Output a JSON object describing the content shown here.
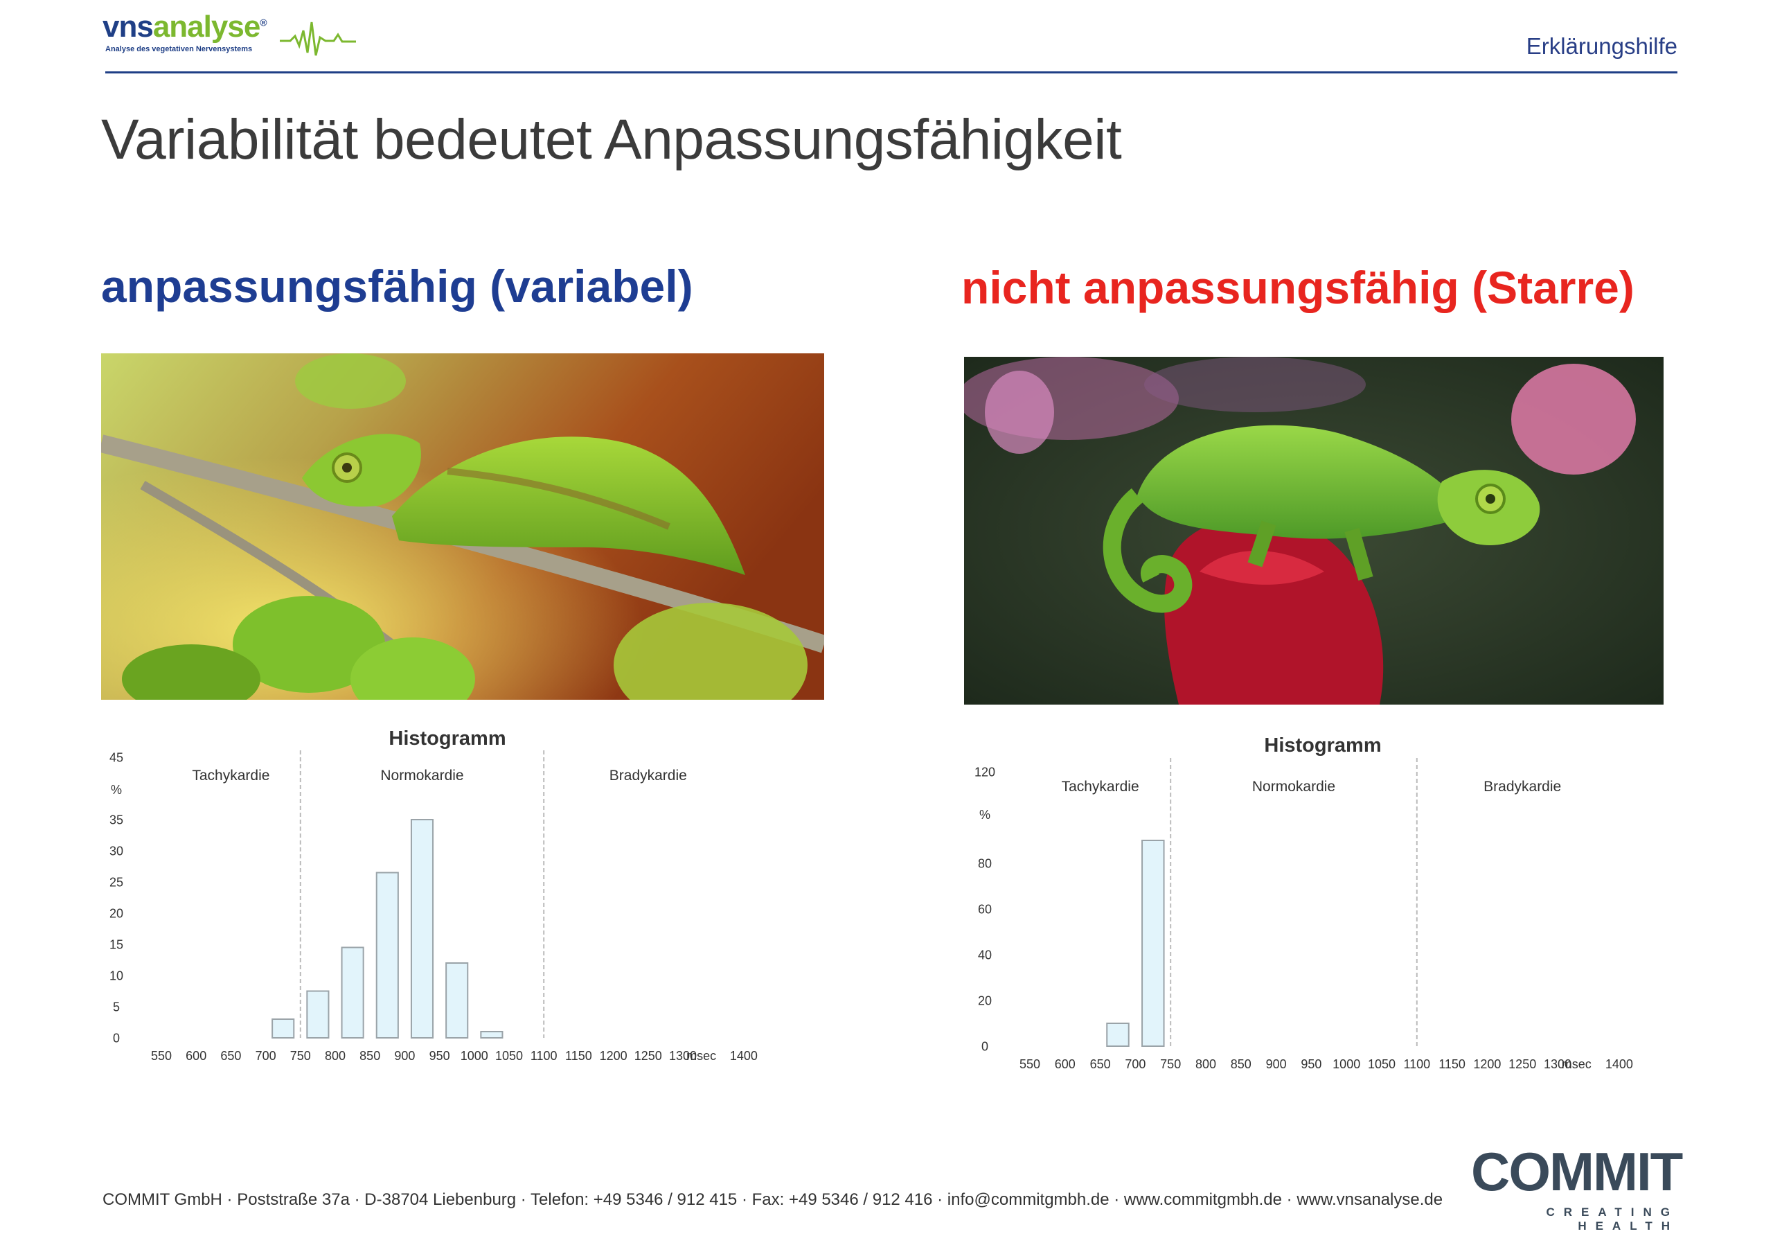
{
  "header": {
    "logo": {
      "word_dark": "vns",
      "word_light": "analyse",
      "reg": "®",
      "subtitle": "Analyse des vegetativen Nervensystems"
    },
    "right_label": "Erklärungshilfe"
  },
  "title": "Variabilität bedeutet Anpassungsfähigkeit",
  "left": {
    "heading": "anpassungsfähig (variabel)"
  },
  "right": {
    "heading": "nicht anpassungsfähig (Starre)"
  },
  "colors": {
    "blue": "#1e3d92",
    "red": "#e8251f",
    "bar_fill": "#e2f4fb",
    "bar_stroke": "#9aa3a8"
  },
  "chart_data": [
    {
      "type": "bar",
      "title": "Histogramm",
      "xlabel": "msec",
      "ylabel": "%",
      "ylim": [
        0,
        45
      ],
      "yticks": [
        0,
        5,
        10,
        15,
        20,
        25,
        30,
        35,
        45
      ],
      "xticks": [
        550,
        600,
        650,
        700,
        750,
        800,
        850,
        900,
        950,
        1000,
        1050,
        1100,
        1150,
        1200,
        1250,
        1300,
        1400
      ],
      "regions": [
        "Tachykardie",
        "Normokardie",
        "Bradykardie"
      ],
      "boundaries": [
        750,
        1100
      ],
      "bars": [
        {
          "x": 725,
          "value": 3
        },
        {
          "x": 775,
          "value": 7.5
        },
        {
          "x": 825,
          "value": 14.5
        },
        {
          "x": 875,
          "value": 26.5
        },
        {
          "x": 925,
          "value": 35
        },
        {
          "x": 975,
          "value": 12
        },
        {
          "x": 1025,
          "value": 1
        }
      ]
    },
    {
      "type": "bar",
      "title": "Histogramm",
      "xlabel": "msec",
      "ylabel": "%",
      "ylim": [
        0,
        120
      ],
      "yticks": [
        0,
        20,
        40,
        60,
        80,
        120
      ],
      "xticks": [
        550,
        600,
        650,
        700,
        750,
        800,
        850,
        900,
        950,
        1000,
        1050,
        1100,
        1150,
        1200,
        1250,
        1300,
        1400
      ],
      "regions": [
        "Tachykardie",
        "Normokardie",
        "Bradykardie"
      ],
      "boundaries": [
        750,
        1100
      ],
      "bars": [
        {
          "x": 675,
          "value": 10
        },
        {
          "x": 725,
          "value": 90
        }
      ]
    }
  ],
  "footer": {
    "address": "COMMIT GmbH · Poststraße 37a · D-38704 Liebenburg · Telefon: +49 5346 / 912 415 · Fax: +49 5346 / 912 416 · info@commitgmbh.de · www.commitgmbh.de · www.vnsanalyse.de",
    "brand": "COMMIT",
    "tagline": "CREATING HEALTH"
  }
}
